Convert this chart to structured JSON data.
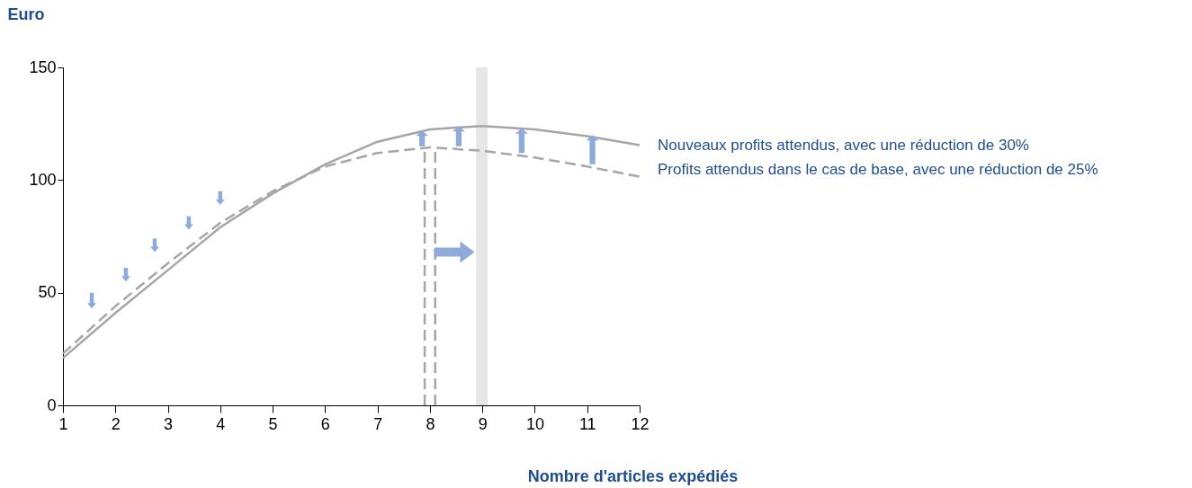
{
  "chart_data": {
    "type": "line",
    "xlabel": "Nombre d'articles expédiés",
    "ylabel": "Euro",
    "x": [
      1,
      2,
      3,
      4,
      5,
      6,
      7,
      8,
      9,
      10,
      11,
      12
    ],
    "series": [
      {
        "name": "Nouveaux profits attendus, avec une réduction de 30%",
        "color": "#a6a6a6",
        "line_style": "solid",
        "values": [
          21,
          41,
          60,
          79,
          94,
          107,
          117,
          122.5,
          124,
          122.5,
          119.5,
          115.5
        ]
      },
      {
        "name": "Profits attendus dans le cas de base, avec une réduction de 25%",
        "color": "#a6a6a6",
        "line_style": "dashed",
        "values": [
          23,
          44,
          63,
          81,
          95,
          106,
          112,
          114.5,
          113,
          110,
          106,
          101.5
        ]
      }
    ],
    "xlim": [
      1,
      12
    ],
    "xticks": [
      1,
      2,
      3,
      4,
      5,
      6,
      7,
      8,
      9,
      10,
      11,
      12
    ],
    "ylim": [
      0,
      150
    ],
    "yticks": [
      0,
      50,
      100,
      150
    ],
    "grid": false,
    "marker": "none",
    "ref_lines": [
      {
        "axis": "x",
        "value": 7.9,
        "color": "#a6a6a6",
        "line_style": "dashed"
      },
      {
        "axis": "x",
        "value": 8.1,
        "color": "#a6a6a6",
        "line_style": "dashed"
      }
    ],
    "bands": [
      {
        "axis": "x",
        "from": 8.88,
        "to": 9.1,
        "color": "#e6e6e6"
      }
    ]
  }
}
